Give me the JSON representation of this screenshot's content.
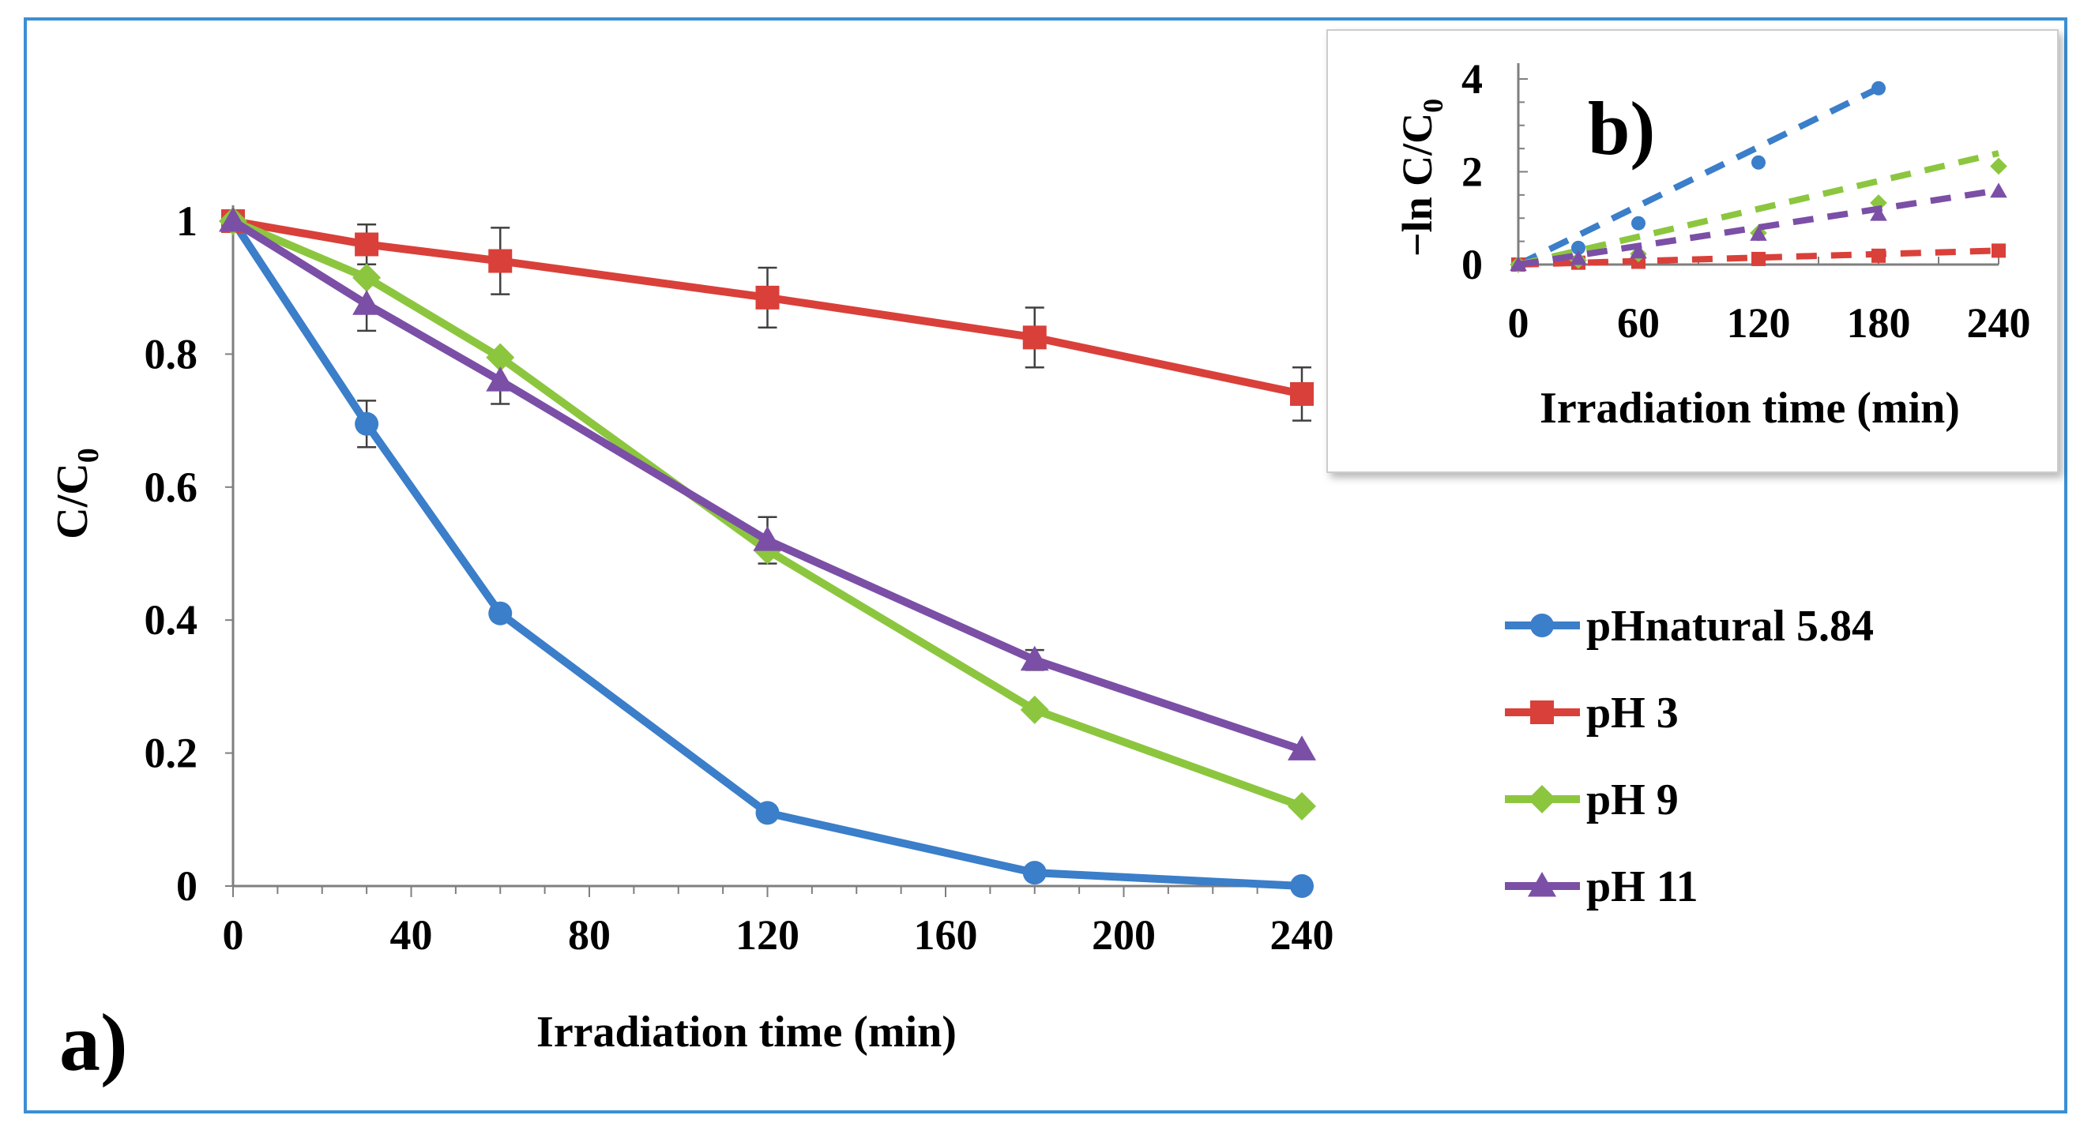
{
  "chart_data": [
    {
      "panel_label": "a)",
      "type": "line",
      "xlabel": "Irradiation time (min)",
      "ylabel": "C/C",
      "ylabel_sub": "0",
      "xlim": [
        0,
        240
      ],
      "ylim": [
        0,
        1
      ],
      "xticks": [
        0,
        40,
        80,
        120,
        160,
        200,
        240
      ],
      "yticks": [
        0,
        0.2,
        0.4,
        0.6,
        0.8,
        1
      ],
      "ytick_labels": [
        "0",
        "0.2",
        "0.4",
        "0.6",
        "0.8",
        "1"
      ],
      "x": [
        0,
        30,
        60,
        120,
        180,
        240
      ],
      "legend_position": "right",
      "series": [
        {
          "name": "pHnatural 5.84",
          "color": "#3b7ec9",
          "marker": "circle",
          "values": [
            1.0,
            0.695,
            0.41,
            0.11,
            0.02,
            0.0
          ],
          "errors": [
            0,
            0.035,
            0,
            0,
            0,
            0
          ]
        },
        {
          "name": "pH 3",
          "color": "#d9403a",
          "marker": "square",
          "values": [
            1.0,
            0.965,
            0.94,
            0.885,
            0.825,
            0.74
          ],
          "errors": [
            0,
            0.03,
            0.05,
            0.045,
            0.045,
            0.04
          ]
        },
        {
          "name": "pH 9",
          "color": "#8cc63f",
          "marker": "diamond",
          "values": [
            1.0,
            0.915,
            0.795,
            0.505,
            0.265,
            0.12
          ],
          "errors": [
            0,
            0,
            0,
            0,
            0,
            0
          ]
        },
        {
          "name": "pH 11",
          "color": "#7b4fa6",
          "marker": "triangle",
          "values": [
            1.0,
            0.875,
            0.76,
            0.52,
            0.34,
            0.205
          ],
          "errors": [
            0,
            0.04,
            0.035,
            0.035,
            0.015,
            0
          ]
        }
      ]
    },
    {
      "panel_label": "b)",
      "type": "scatter",
      "xlabel": "Irradiation time (min)",
      "ylabel": "−ln C/C",
      "ylabel_sub": "0",
      "xlim": [
        0,
        240
      ],
      "ylim": [
        0,
        4
      ],
      "xticks": [
        0,
        60,
        120,
        180,
        240
      ],
      "yticks": [
        0,
        2,
        4
      ],
      "trendline": "linear, dashed",
      "series": [
        {
          "name": "pHnatural 5.84",
          "color": "#3b7ec9",
          "marker": "circle",
          "x": [
            0,
            30,
            60,
            120,
            180
          ],
          "values": [
            0,
            0.36,
            0.89,
            2.2,
            3.8
          ],
          "fit": [
            [
              0,
              0
            ],
            [
              180,
              3.8
            ]
          ]
        },
        {
          "name": "pH 3",
          "color": "#d9403a",
          "marker": "square",
          "x": [
            0,
            30,
            60,
            120,
            180,
            240
          ],
          "values": [
            0,
            0.04,
            0.06,
            0.12,
            0.19,
            0.3
          ],
          "fit": [
            [
              0,
              0
            ],
            [
              240,
              0.3
            ]
          ]
        },
        {
          "name": "pH 9",
          "color": "#8cc63f",
          "marker": "diamond",
          "x": [
            0,
            30,
            60,
            120,
            180,
            240
          ],
          "values": [
            0,
            0.09,
            0.23,
            0.68,
            1.33,
            2.12
          ],
          "fit": [
            [
              0,
              0
            ],
            [
              240,
              2.4
            ]
          ]
        },
        {
          "name": "pH 11",
          "color": "#7b4fa6",
          "marker": "triangle",
          "x": [
            0,
            30,
            60,
            120,
            180,
            240
          ],
          "values": [
            0,
            0.13,
            0.27,
            0.65,
            1.08,
            1.58
          ],
          "fit": [
            [
              0,
              0
            ],
            [
              240,
              1.6
            ]
          ]
        }
      ]
    }
  ]
}
